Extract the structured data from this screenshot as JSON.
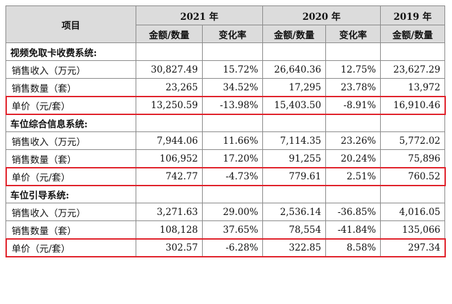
{
  "header": {
    "item_label": "项目",
    "years": [
      "2021 年",
      "2020 年",
      "2019 年"
    ],
    "amount_label": "金额/数量",
    "change_label": "变化率"
  },
  "sections": [
    {
      "title": "视频免取卡收费系统:",
      "rows": [
        {
          "label": "销售收入（万元）",
          "v2021": "30,827.49",
          "c2021": "15.72%",
          "v2020": "26,640.36",
          "c2020": "12.75%",
          "v2019": "23,627.29"
        },
        {
          "label": "销售数量（套）",
          "v2021": "23,265",
          "c2021": "34.52%",
          "v2020": "17,295",
          "c2020": "23.78%",
          "v2019": "13,972"
        },
        {
          "label": "单价（元/套）",
          "v2021": "13,250.59",
          "c2021": "-13.98%",
          "v2020": "15,403.50",
          "c2020": "-8.91%",
          "v2019": "16,910.46"
        }
      ]
    },
    {
      "title": "车位综合信息系统:",
      "rows": [
        {
          "label": "销售收入（万元）",
          "v2021": "7,944.06",
          "c2021": "11.66%",
          "v2020": "7,114.35",
          "c2020": "23.26%",
          "v2019": "5,772.02"
        },
        {
          "label": "销售数量（套）",
          "v2021": "106,952",
          "c2021": "17.20%",
          "v2020": "91,255",
          "c2020": "20.24%",
          "v2019": "75,896"
        },
        {
          "label": "单价（元/套）",
          "v2021": "742.77",
          "c2021": "-4.73%",
          "v2020": "779.61",
          "c2020": "2.51%",
          "v2019": "760.52"
        }
      ]
    },
    {
      "title": "车位引导系统:",
      "rows": [
        {
          "label": "销售收入（万元）",
          "v2021": "3,271.63",
          "c2021": "29.00%",
          "v2020": "2,536.14",
          "c2020": "-36.85%",
          "v2019": "4,016.05"
        },
        {
          "label": "销售数量（套）",
          "v2021": "108,128",
          "c2021": "37.65%",
          "v2020": "78,554",
          "c2020": "-41.84%",
          "v2019": "135,066"
        },
        {
          "label": "单价（元/套）",
          "v2021": "302.57",
          "c2021": "-6.28%",
          "v2020": "322.85",
          "c2020": "8.58%",
          "v2019": "297.34"
        }
      ]
    }
  ],
  "highlight_color": "#e0212a"
}
